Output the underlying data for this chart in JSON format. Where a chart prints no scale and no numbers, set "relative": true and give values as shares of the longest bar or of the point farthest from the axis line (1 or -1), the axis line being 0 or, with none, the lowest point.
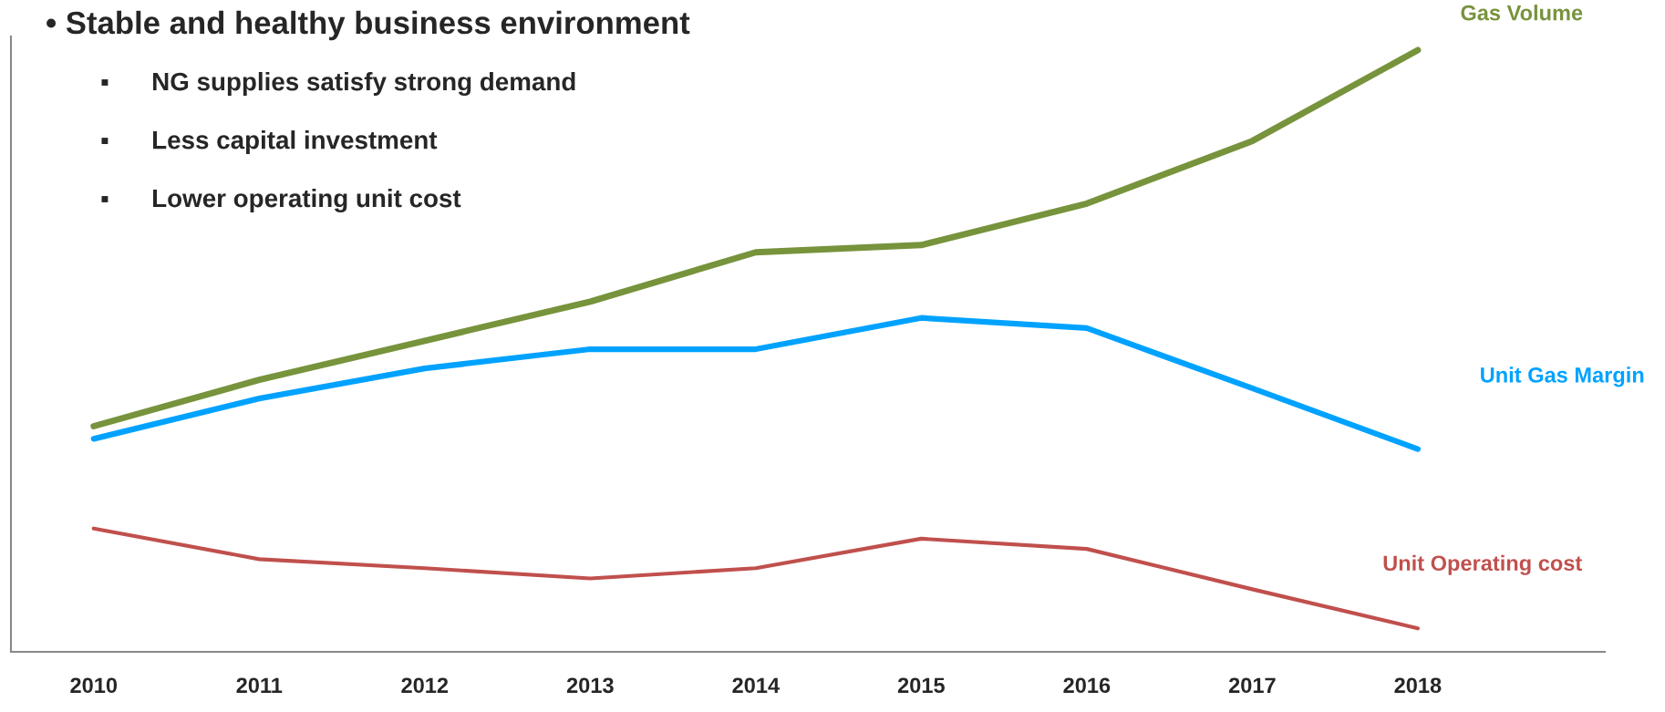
{
  "chart_data": {
    "type": "line",
    "relative": true,
    "title": "• Stable and healthy business environment",
    "annotations": [
      "▪      NG supplies satisfy strong demand",
      "▪      Less capital investment",
      "▪      Lower operating unit cost"
    ],
    "categories": [
      "2010",
      "2011",
      "2012",
      "2013",
      "2014",
      "2015",
      "2016",
      "2017",
      "2018"
    ],
    "series": [
      {
        "name": "Gas Volume",
        "color": "#77933c",
        "values": [
          0.375,
          0.452,
          0.517,
          0.582,
          0.664,
          0.676,
          0.745,
          0.849,
          1
        ]
      },
      {
        "name": "Unit Gas Margin",
        "color": "#00a2ff",
        "values": [
          0.354,
          0.421,
          0.471,
          0.503,
          0.503,
          0.555,
          0.538,
          0.438,
          0.337
        ]
      },
      {
        "name": "Unit Operating cost",
        "color": "#c0504d",
        "values": [
          0.205,
          0.154,
          0.139,
          0.122,
          0.139,
          0.188,
          0.171,
          0.104,
          0.039
        ]
      }
    ],
    "grid": false,
    "legend": false,
    "marker": "none",
    "line_style": "solid"
  }
}
